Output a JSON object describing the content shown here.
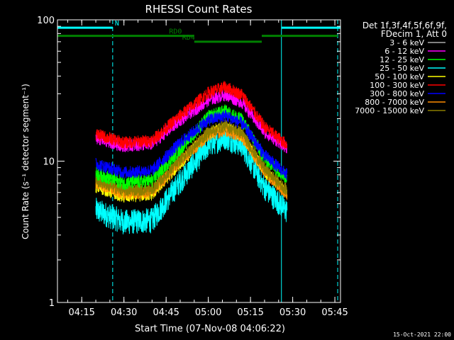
{
  "chart_data": {
    "type": "line",
    "title": "RHESSI Count Rates",
    "xlabel": "Start Time (07-Nov-08 04:06:22)",
    "ylabel": "Count Rate (s⁻¹ detector segment⁻¹)",
    "x_unit": "time (HH:MM)",
    "xlim": [
      "04:06:22",
      "05:47:00"
    ],
    "ylim": [
      1,
      100
    ],
    "yscale": "log",
    "x_ticks": [
      "04:15",
      "04:30",
      "04:45",
      "05:00",
      "05:15",
      "05:30",
      "05:45"
    ],
    "y_ticks": [
      "1",
      "10",
      "100"
    ],
    "legend_header": [
      "Det 1f,3f,4f,5f,6f,9f,",
      "FDecim 1, Att 0"
    ],
    "legend_position": "right",
    "series": [
      {
        "name": "3 - 6 keV",
        "color": "#000000",
        "points": [
          [
            "04:20",
            7.6
          ],
          [
            "04:30",
            6.4
          ],
          [
            "04:40",
            6.5
          ],
          [
            "04:50",
            10.5
          ],
          [
            "05:00",
            17.5
          ],
          [
            "05:06",
            20.0
          ],
          [
            "05:12",
            16.5
          ],
          [
            "05:20",
            9.0
          ],
          [
            "05:28",
            6.8
          ]
        ]
      },
      {
        "name": "6 - 12 keV",
        "color": "#ff00ff",
        "points": [
          [
            "04:20",
            14.5
          ],
          [
            "04:30",
            12.8
          ],
          [
            "04:40",
            13.2
          ],
          [
            "04:50",
            19.5
          ],
          [
            "05:00",
            27.0
          ],
          [
            "05:06",
            29.5
          ],
          [
            "05:12",
            26.0
          ],
          [
            "05:20",
            16.0
          ],
          [
            "05:28",
            12.5
          ]
        ]
      },
      {
        "name": "12 - 25 keV",
        "color": "#00ff00",
        "points": [
          [
            "04:20",
            8.2
          ],
          [
            "04:30",
            7.0
          ],
          [
            "04:40",
            7.3
          ],
          [
            "04:50",
            12.2
          ],
          [
            "05:00",
            20.5
          ],
          [
            "05:06",
            22.5
          ],
          [
            "05:12",
            19.5
          ],
          [
            "05:20",
            10.5
          ],
          [
            "05:28",
            7.6
          ]
        ]
      },
      {
        "name": "25 - 50 keV",
        "color": "#00ffff",
        "points": [
          [
            "04:20",
            4.5
          ],
          [
            "04:30",
            3.7
          ],
          [
            "04:40",
            3.8
          ],
          [
            "04:50",
            7.2
          ],
          [
            "05:00",
            13.0
          ],
          [
            "05:06",
            14.8
          ],
          [
            "05:12",
            13.0
          ],
          [
            "05:20",
            6.5
          ],
          [
            "05:28",
            4.4
          ]
        ]
      },
      {
        "name": "50 - 100 keV",
        "color": "#ffff00",
        "points": [
          [
            "04:20",
            6.6
          ],
          [
            "04:30",
            5.6
          ],
          [
            "04:40",
            5.8
          ],
          [
            "04:50",
            9.6
          ],
          [
            "05:00",
            15.8
          ],
          [
            "05:06",
            17.2
          ],
          [
            "05:12",
            15.2
          ],
          [
            "05:20",
            8.4
          ],
          [
            "05:28",
            6.0
          ]
        ]
      },
      {
        "name": "100 - 300 keV",
        "color": "#ff0000",
        "points": [
          [
            "04:20",
            15.5
          ],
          [
            "04:30",
            13.5
          ],
          [
            "04:40",
            14.0
          ],
          [
            "04:50",
            21.0
          ],
          [
            "05:00",
            30.5
          ],
          [
            "05:06",
            33.5
          ],
          [
            "05:12",
            29.5
          ],
          [
            "05:20",
            17.5
          ],
          [
            "05:28",
            13.0
          ]
        ]
      },
      {
        "name": "300 - 800 keV",
        "color": "#0000ff",
        "points": [
          [
            "04:20",
            9.6
          ],
          [
            "04:30",
            8.3
          ],
          [
            "04:40",
            8.6
          ],
          [
            "04:50",
            13.5
          ],
          [
            "05:00",
            19.5
          ],
          [
            "05:06",
            21.0
          ],
          [
            "05:12",
            18.5
          ],
          [
            "05:20",
            11.0
          ],
          [
            "05:28",
            8.0
          ]
        ]
      },
      {
        "name": "800 - 7000 keV",
        "color": "#ff8c00",
        "points": [
          [
            "04:20",
            7.0
          ],
          [
            "04:30",
            5.9
          ],
          [
            "04:40",
            6.0
          ],
          [
            "04:50",
            10.0
          ],
          [
            "05:00",
            15.3
          ],
          [
            "05:06",
            16.6
          ],
          [
            "05:12",
            14.8
          ],
          [
            "05:20",
            8.5
          ],
          [
            "05:28",
            5.8
          ]
        ]
      },
      {
        "name": "7000 - 15000 keV",
        "color": "#8b7d00",
        "points": [
          [
            "04:20",
            7.3
          ],
          [
            "04:30",
            6.2
          ],
          [
            "04:40",
            6.3
          ],
          [
            "04:50",
            10.2
          ],
          [
            "05:00",
            16.0
          ],
          [
            "05:06",
            17.8
          ],
          [
            "05:12",
            15.8
          ],
          [
            "05:20",
            8.8
          ],
          [
            "05:28",
            6.2
          ]
        ]
      }
    ],
    "annotations": [
      {
        "label": "N",
        "color": "#00ffff",
        "bar": [
          "04:06:22",
          "04:26"
        ],
        "level": 88,
        "solid_line": "04:06:22",
        "dashed_line": "04:26"
      },
      {
        "label": "",
        "color": "#00ffff",
        "bar": [
          "05:26",
          "05:47"
        ],
        "level": 88,
        "solid_line": "05:26",
        "dashed_line": "05:46"
      },
      {
        "label": "RD0",
        "color": "#008000",
        "bar": [
          "04:06:22",
          "04:55"
        ],
        "level": 77
      },
      {
        "label": "",
        "color": "#008000",
        "bar": [
          "05:19",
          "05:46"
        ],
        "level": 77
      },
      {
        "label": "RD4",
        "color": "#008000",
        "bar": [
          "04:55",
          "05:19"
        ],
        "level": 70
      }
    ],
    "footer": "15-Oct-2021 22:00"
  }
}
